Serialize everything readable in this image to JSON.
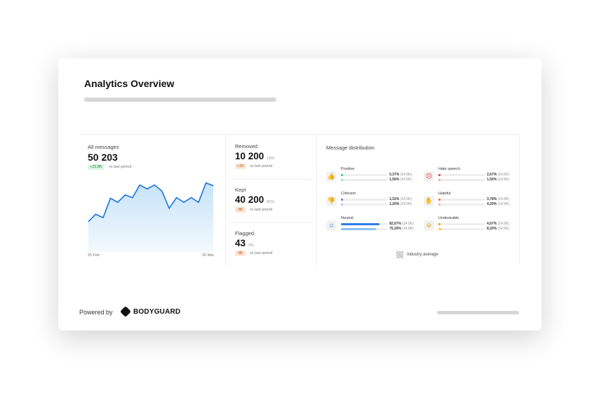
{
  "title": "Analytics Overview",
  "all_messages": {
    "label": "All messages",
    "value": "50 203",
    "badge": "+23,8K",
    "vs": "vs last period",
    "x_start": "25 Feb",
    "x_end": "26 Mar"
  },
  "stats": [
    {
      "label": "Removed",
      "value": "10 200",
      "pct": "15%",
      "badge": "+2K",
      "vs": "vs last period"
    },
    {
      "label": "Kept",
      "value": "40 200",
      "pct": "82%",
      "badge": "-8K",
      "vs": "vs last period"
    },
    {
      "label": "Flagged",
      "value": "43",
      "pct": "3%",
      "badge": "-8K",
      "vs": "vs last period"
    }
  ],
  "distribution": {
    "title": "Message distribution",
    "legend": "Industry average",
    "items": [
      {
        "name": "Positive",
        "icon": "thumbs-up-icon",
        "color": "#2bc4a8",
        "light": "#7fe3d0",
        "v1": 0.37,
        "t1": "0,37%",
        "v2": 1.56,
        "t2": "1,56%",
        "count": "(14.5K)"
      },
      {
        "name": "Hate speech",
        "icon": "angry-face-icon",
        "color": "#e5383b",
        "light": "#f29a9b",
        "v1": 2.67,
        "t1": "2,67%",
        "v2": 1.56,
        "t2": "1,56%",
        "count": "(14.5K)"
      },
      {
        "name": "Criticism",
        "icon": "thumbs-down-icon",
        "color": "#8b5cf6",
        "light": "#c4b1fb",
        "v1": 1.32,
        "t1": "1,32%",
        "v2": 1.2,
        "t2": "1,20%",
        "count": "(14.5K)"
      },
      {
        "name": "Hateful",
        "icon": "hand-icon",
        "color": "#f26b1d",
        "light": "#f8b07f",
        "v1": 3.78,
        "t1": "3,78%",
        "v2": 4.2,
        "t2": "4,20%",
        "count": "(14.5K)"
      },
      {
        "name": "Neutral",
        "icon": "neutral-face-icon",
        "color": "#2f7be6",
        "light": "#8cc0f5",
        "v1": 82.67,
        "t1": "82,67%",
        "v2": 75.2,
        "t2": "75,20%",
        "count": "(14.5K)"
      },
      {
        "name": "Undesirable",
        "icon": "prohibited-icon",
        "color": "#e0a800",
        "light": "#f8d84a",
        "v1": 4.67,
        "t1": "4,67%",
        "v2": 8.2,
        "t2": "8,20%",
        "count": "(14.5K)"
      }
    ]
  },
  "chart_data": {
    "type": "area",
    "values": [
      36,
      47,
      42,
      71,
      65,
      76,
      72,
      91,
      85,
      91,
      82,
      56,
      72,
      65,
      72,
      65,
      94,
      90
    ],
    "color": "#1a73d9"
  },
  "footer": {
    "powered": "Powered by",
    "brand": "BODYGUARD"
  }
}
